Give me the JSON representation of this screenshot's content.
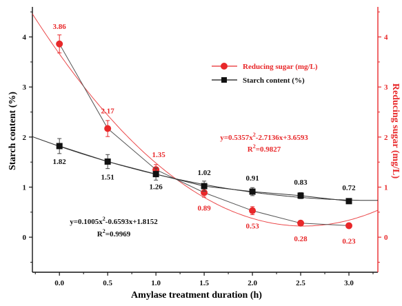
{
  "chart_data": {
    "type": "line",
    "xlabel": "Amylase treatment duration (h)",
    "ylabel_left": "Starch content (%)",
    "ylabel_right": "Reducing sugar (mg/L)",
    "xlim": [
      -0.28,
      3.3
    ],
    "ylim_left": [
      -0.7,
      4.6
    ],
    "ylim_right": [
      -0.7,
      4.6
    ],
    "x_ticks": [
      0.0,
      0.5,
      1.0,
      1.5,
      2.0,
      2.5,
      3.0
    ],
    "x_tick_labels": [
      "0.0",
      "0.5",
      "1.0",
      "1.5",
      "2.0",
      "2.5",
      "3.0"
    ],
    "y_ticks_left": [
      0,
      1,
      2,
      3,
      4
    ],
    "y_tick_labels_left": [
      "0",
      "1",
      "2",
      "3",
      "4"
    ],
    "y_ticks_right": [
      0,
      1,
      2,
      3,
      4
    ],
    "y_tick_labels_right": [
      "0",
      "1",
      "2",
      "3",
      "4"
    ],
    "grid": false,
    "legend_placement": "top-right",
    "colors": {
      "starch": "#111111",
      "sugar": "#e8282a"
    },
    "series": [
      {
        "key": "sugar",
        "name": "Reducing sugar (mg/L)",
        "axis": "right",
        "marker": "circle",
        "x": [
          0.0,
          0.5,
          1.0,
          1.5,
          2.0,
          2.5,
          3.0
        ],
        "values": [
          3.86,
          2.17,
          1.35,
          0.89,
          0.53,
          0.28,
          0.23
        ],
        "labels": [
          "3.86",
          "2.17",
          "1.35",
          "0.89",
          "0.53",
          "0.28",
          "0.23"
        ],
        "errors": [
          0.18,
          0.16,
          0.1,
          0.09,
          0.08,
          0.05,
          0.04
        ],
        "fit": [
          0.5357,
          -2.7136,
          3.6593
        ],
        "equation": "y=0.5357x",
        "equation_sup": "2",
        "equation_tail": "-2.7136x+3.6593",
        "r2_prefix": "R",
        "r2_sup": "2",
        "r2_value": "=0.9827"
      },
      {
        "key": "starch",
        "name": "Starch content (%)",
        "axis": "left",
        "marker": "square",
        "x": [
          0.0,
          0.5,
          1.0,
          1.5,
          2.0,
          2.5,
          3.0
        ],
        "values": [
          1.82,
          1.51,
          1.26,
          1.02,
          0.91,
          0.83,
          0.72
        ],
        "labels": [
          "1.82",
          "1.51",
          "1.26",
          "1.02",
          "0.91",
          "0.83",
          "0.72"
        ],
        "errors": [
          0.15,
          0.14,
          0.12,
          0.1,
          0.08,
          0.06,
          0.05
        ],
        "fit": [
          0.1005,
          -0.6593,
          1.8152
        ],
        "equation": "y=0.1005x",
        "equation_sup": "2",
        "equation_tail": "-0.6593x+1.8152",
        "r2_prefix": "R",
        "r2_sup": "2",
        "r2_value": "=0.9969"
      }
    ]
  }
}
